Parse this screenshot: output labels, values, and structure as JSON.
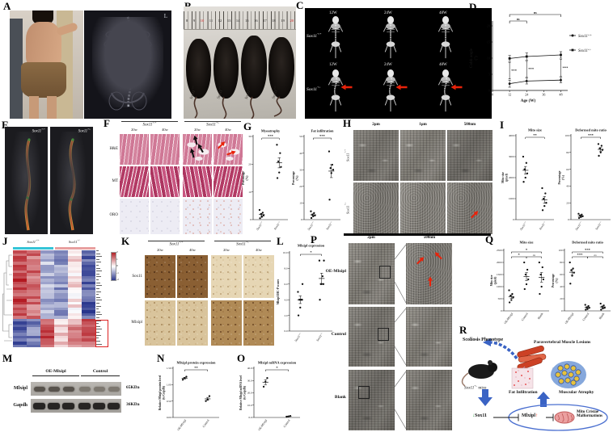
{
  "panelA": {
    "label": "A",
    "xray_marker": "L"
  },
  "panelB": {
    "label": "B",
    "ruler_numbers": [
      "8",
      "9",
      "10",
      "11",
      "12",
      "13",
      "14",
      "15",
      "16",
      "17",
      "18",
      "19",
      "20"
    ],
    "red_numbers": [
      "10",
      "20"
    ],
    "mice": [
      "Sox11+/+",
      "Sox11+/-",
      "Sox11+/+",
      "Sox11+/-"
    ]
  },
  "panelC": {
    "label": "C",
    "ages": [
      "12W",
      "24W",
      "48W"
    ],
    "rows": [
      "Sox11+/+",
      "Sox11+/-"
    ]
  },
  "panelD": {
    "label": "D"
  },
  "panelE": {
    "label": "E",
    "images": [
      "Sox11+/+",
      "Sox11+/-"
    ]
  },
  "panelF": {
    "label": "F",
    "groups": [
      "Sox11+/+",
      "Sox11+/-"
    ],
    "ages": [
      "20w",
      "40w",
      "20w",
      "40w"
    ],
    "stains": [
      "H&E",
      "MT",
      "ORO"
    ]
  },
  "panelG": {
    "label": "G"
  },
  "panelH": {
    "label": "H",
    "scales": [
      "2μm",
      "1μm",
      "500nm"
    ],
    "rows": [
      "Sox11+/+",
      "Sox11+/-"
    ]
  },
  "panelI": {
    "label": "I"
  },
  "panelJ": {
    "label": "J",
    "groups": [
      "Sox11+/+",
      "Sox11+/-"
    ],
    "legend_ticks": [
      "2",
      "1",
      "0",
      "-1",
      "-2"
    ],
    "heatmap": {
      "clusters": [
        {
          "rows": 24,
          "pattern": [
            1.6,
            1.25,
            -0.7,
            -1.0,
            0.25,
            -1.55
          ]
        },
        {
          "rows": 10,
          "pattern": [
            -1.5,
            -1.2,
            1.45,
            0.3,
            0.95,
            1.4
          ]
        }
      ]
    }
  },
  "panelK": {
    "label": "K",
    "groups": [
      "Sox11+/+",
      "Sox11+/-"
    ],
    "ages": [
      "20w",
      "40w",
      "20w",
      "40w"
    ],
    "rows": [
      "Sox11",
      "Mlxipl"
    ]
  },
  "panelL": {
    "label": "L"
  },
  "panelM": {
    "label": "M",
    "lanes": [
      "OE-Mlxipl",
      "Control"
    ],
    "bands": [
      {
        "protein": "Mlxipl",
        "mw": "65KDa"
      },
      {
        "protein": "Gapdh",
        "mw": "36KDa"
      }
    ]
  },
  "panelN": {
    "label": "N"
  },
  "panelO": {
    "label": "O"
  },
  "panelP": {
    "label": "P",
    "scales": [
      "2μm",
      "500nm"
    ],
    "rows": [
      "OE-Mlxipl",
      "Control",
      "Blank"
    ]
  },
  "panelQ": {
    "label": "Q"
  },
  "panelR": {
    "label": "R",
    "phenotype": "Scoliosis Phenotype",
    "muscle_lesions": "Paravertebral Muscle Lesions",
    "mice": "Sox11+/- mice",
    "fat": "Fat Infiltration",
    "atrophy": "Muscular Atrophy",
    "sox11": "Sox11",
    "sox11_dir": "↓",
    "mlxipl": "Mlxipl",
    "mlxipl_dir": "↑",
    "mito": "Mito Cristae Malformations"
  },
  "chart_data": [
    {
      "id": "D",
      "panel": "D",
      "type": "line",
      "ylabel": [
        "Cobb angle",
        "(°)"
      ],
      "xlabel": "Age (W)",
      "xticks": [
        0,
        12,
        24,
        36,
        48
      ],
      "yticks": [
        0,
        5,
        10,
        15,
        20
      ],
      "series": [
        {
          "name": "Sox11+/+",
          "x": [
            12,
            24,
            48
          ],
          "y": [
            2.1,
            2.9,
            3.2
          ],
          "err": [
            1.1,
            0.9,
            0.8
          ]
        },
        {
          "name": "Sox11+/-",
          "x": [
            12,
            24,
            48
          ],
          "y": [
            9.9,
            10.5,
            11.0
          ],
          "err": [
            0.9,
            1.1,
            1.0
          ]
        }
      ],
      "between_sig": [
        {
          "x": 12,
          "label": "***"
        },
        {
          "x": 24,
          "label": "***"
        },
        {
          "x": 48,
          "label": "***"
        }
      ],
      "brackets": [
        {
          "x1": 12,
          "x2": 24,
          "label": "ns"
        },
        {
          "x1": 12,
          "x2": 48,
          "label": "ns"
        }
      ],
      "legend_position": "right"
    },
    {
      "id": "G1",
      "panel": "G",
      "type": "scatter",
      "title": "Myoatrophy",
      "ylabel": [
        "Percentage",
        "(%)"
      ],
      "yticks": [
        0,
        10,
        20,
        30
      ],
      "tick_labels": [
        "0",
        "10",
        "20",
        "30"
      ],
      "groups": [
        {
          "label": "Sox11+/+",
          "points": [
            0.5,
            1,
            1.5,
            2,
            2.5,
            3.5
          ]
        },
        {
          "label": "Sox11+/-",
          "points": [
            15,
            17,
            19,
            21,
            24,
            27
          ]
        }
      ],
      "sig": [
        {
          "a": 0,
          "b": 1,
          "label": "***",
          "level": 0
        }
      ]
    },
    {
      "id": "G2",
      "panel": "G",
      "type": "scatter",
      "title": "Fat infiltration",
      "ylabel": [
        "Percentage",
        "(%)"
      ],
      "yticks": [
        0,
        10,
        20,
        30,
        40,
        50
      ],
      "tick_labels": [
        "0",
        "10",
        "20",
        "30",
        "40",
        "50"
      ],
      "groups": [
        {
          "label": "Sox11+/+",
          "points": [
            1,
            2,
            2.5,
            3,
            4,
            5
          ]
        },
        {
          "label": "Sox11+/-",
          "points": [
            12,
            28,
            30,
            31,
            33,
            41
          ]
        }
      ],
      "sig": [
        {
          "a": 0,
          "b": 1,
          "label": "***",
          "level": 0
        }
      ]
    },
    {
      "id": "I1",
      "panel": "I",
      "type": "scatter",
      "title": "Mito size",
      "ylabel": [
        "Mito size",
        "(pixel)"
      ],
      "yticks": [
        0,
        1000,
        2000,
        3000,
        4000
      ],
      "tick_labels": [
        "0",
        "1000",
        "2000",
        "3000",
        "4000"
      ],
      "groups": [
        {
          "label": "Sox11+/+",
          "points": [
            1800,
            2000,
            2200,
            2400,
            2700,
            3000
          ]
        },
        {
          "label": "Sox11+/-",
          "points": [
            450,
            650,
            800,
            1000,
            1250,
            1500
          ]
        }
      ],
      "sig": [
        {
          "a": 0,
          "b": 1,
          "label": "**",
          "level": 0
        }
      ]
    },
    {
      "id": "I2",
      "panel": "I",
      "type": "scatter",
      "title": "Deformed mito ratio",
      "ylabel": [
        "Percentage",
        "(%)"
      ],
      "yticks": [
        0,
        20,
        40,
        60,
        80,
        100
      ],
      "tick_labels": [
        "0",
        "20",
        "40",
        "60",
        "80",
        "100"
      ],
      "groups": [
        {
          "label": "Sox11+/+",
          "points": [
            2,
            3,
            4,
            5,
            6,
            7
          ]
        },
        {
          "label": "Sox11+/-",
          "points": [
            76,
            80,
            83,
            85,
            88,
            90
          ]
        }
      ],
      "sig": [
        {
          "a": 0,
          "b": 1,
          "label": "***",
          "level": 0
        }
      ]
    },
    {
      "id": "L",
      "panel": "L",
      "type": "scatter",
      "title": "Mlxipl expression",
      "ylabel": [
        "Mlxipl IHC-P scores"
      ],
      "yticks": [
        0,
        2,
        4,
        6,
        8,
        10
      ],
      "tick_labels": [
        "0.0",
        "2.0",
        "4.0",
        "6.0",
        "8.0",
        "10.0"
      ],
      "groups": [
        {
          "label": "Sox11+/+",
          "points": [
            2,
            3,
            4,
            4,
            4,
            5,
            6
          ]
        },
        {
          "label": "Sox11+/-",
          "points": [
            4,
            6,
            6,
            6,
            7,
            9,
            9
          ]
        }
      ],
      "sig": [
        {
          "a": 0,
          "b": 1,
          "label": "*",
          "level": 0
        }
      ]
    },
    {
      "id": "N",
      "panel": "N",
      "type": "scatter",
      "title": "Mlxipl protein expression",
      "ylabel": [
        "Relative Mlxipl protein level",
        "(to Gapdh)"
      ],
      "yticks": [
        0,
        0.5,
        1,
        1.5
      ],
      "tick_labels": [
        "0.00",
        "0.50",
        "1.00",
        "1.50"
      ],
      "groups": [
        {
          "label": "OE-Mlxipl",
          "points": [
            1.15,
            1.2,
            1.24
          ]
        },
        {
          "label": "Control",
          "points": [
            0.5,
            0.55,
            0.65
          ]
        }
      ],
      "sig": [
        {
          "a": 0,
          "b": 1,
          "label": "**",
          "level": 0
        }
      ]
    },
    {
      "id": "O",
      "panel": "O",
      "type": "scatter",
      "title": "Mlxipl mRNA expression",
      "ylabel": [
        "Relative Mlxipl mRNA level",
        "(to Gapdh)"
      ],
      "yticks": [
        0,
        10,
        20,
        30,
        40
      ],
      "tick_labels": [
        "0.0",
        "10.0",
        "20.0",
        "30.0",
        "40.0"
      ],
      "groups": [
        {
          "label": "OE-Mlxipl",
          "points": [
            25,
            29,
            32
          ]
        },
        {
          "label": "Control",
          "points": [
            0.6,
            0.9,
            1.2
          ]
        }
      ],
      "sig": [
        {
          "a": 0,
          "b": 1,
          "label": "*",
          "level": 0
        }
      ]
    },
    {
      "id": "Q1",
      "panel": "Q",
      "type": "scatter",
      "title": "Mito size",
      "ylabel": [
        "Mito size",
        "(pixel)"
      ],
      "yticks": [
        0,
        500,
        1000,
        1500,
        2000,
        2500
      ],
      "tick_labels": [
        "0",
        "500",
        "1000",
        "1500",
        "2000",
        "2500"
      ],
      "groups": [
        {
          "label": "OE-Mlxipl",
          "points": [
            350,
            450,
            550,
            620,
            700,
            850
          ]
        },
        {
          "label": "Control",
          "points": [
            900,
            1100,
            1300,
            1500,
            1700,
            2000
          ]
        },
        {
          "label": "Blank",
          "points": [
            700,
            1000,
            1300,
            1500,
            1800,
            2000
          ]
        }
      ],
      "sig": [
        {
          "a": 0,
          "b": 1,
          "label": "*",
          "level": 1
        },
        {
          "a": 1,
          "b": 2,
          "label": "ns",
          "level": 1
        },
        {
          "a": 0,
          "b": 2,
          "label": "*",
          "level": 0
        }
      ]
    },
    {
      "id": "Q2",
      "panel": "Q",
      "type": "scatter",
      "title": "Deformed mito ratio",
      "ylabel": [
        "Percentage",
        "(%)"
      ],
      "yticks": [
        0,
        20,
        40,
        60,
        80,
        100
      ],
      "tick_labels": [
        "0",
        "20",
        "40",
        "60",
        "80",
        "100"
      ],
      "groups": [
        {
          "label": "OE-Mlxipl",
          "points": [
            45,
            58,
            63,
            67,
            70,
            80
          ]
        },
        {
          "label": "Control",
          "points": [
            2,
            3,
            5,
            6,
            8,
            10
          ]
        },
        {
          "label": "Blank",
          "points": [
            2,
            4,
            5,
            7,
            9,
            12
          ]
        }
      ],
      "sig": [
        {
          "a": 0,
          "b": 1,
          "label": "***",
          "level": 1
        },
        {
          "a": 1,
          "b": 2,
          "label": "ns",
          "level": 1
        },
        {
          "a": 0,
          "b": 2,
          "label": "***",
          "level": 0
        }
      ]
    }
  ]
}
